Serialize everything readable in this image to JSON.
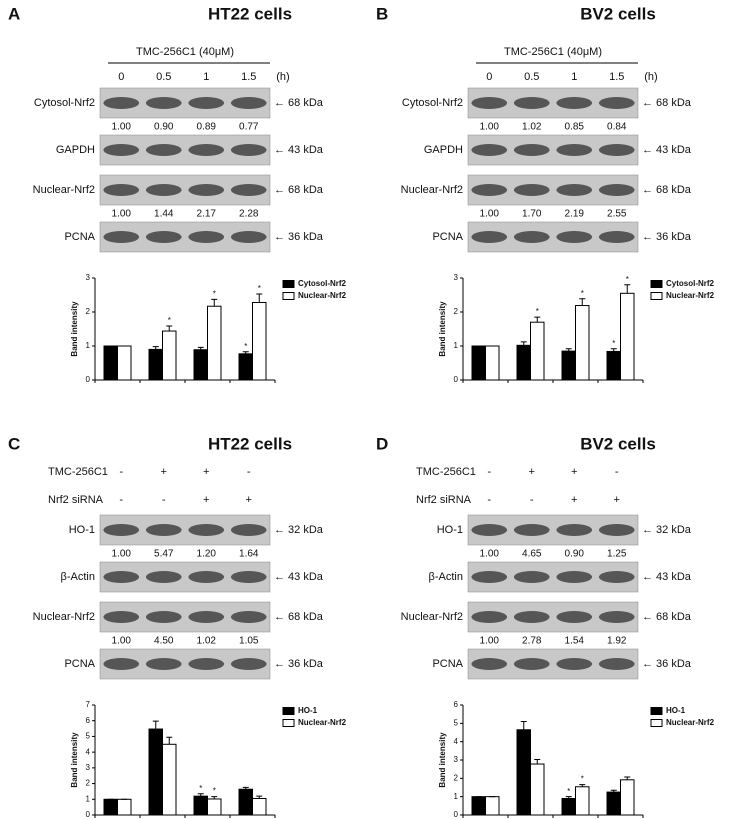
{
  "panels": [
    {
      "letter": "A",
      "title": "HT22 cells",
      "treatments": [
        {
          "label": "TMC-256C1 (40μM)",
          "lanes": [
            "0",
            "0.5",
            "1",
            "1.5"
          ],
          "unit": "(h)"
        }
      ],
      "blots": [
        {
          "label": "Cytosol-Nrf2",
          "marker": "← 68 kDa",
          "quant": [
            "1.00",
            "0.90",
            "0.89",
            "0.77"
          ]
        },
        {
          "label": "GAPDH",
          "marker": "← 43 kDa"
        },
        {
          "label": "Nuclear-Nrf2",
          "marker": "← 68 kDa",
          "quant": [
            "1.00",
            "1.44",
            "2.17",
            "2.28"
          ]
        },
        {
          "label": "PCNA",
          "marker": "← 36 kDa"
        }
      ]
    },
    {
      "letter": "B",
      "title": "BV2 cells",
      "treatments": [
        {
          "label": "TMC-256C1 (40μM)",
          "lanes": [
            "0",
            "0.5",
            "1",
            "1.5"
          ],
          "unit": "(h)"
        }
      ],
      "blots": [
        {
          "label": "Cytosol-Nrf2",
          "marker": "← 68 kDa",
          "quant": [
            "1.00",
            "1.02",
            "0.85",
            "0.84"
          ]
        },
        {
          "label": "GAPDH",
          "marker": "← 43 kDa"
        },
        {
          "label": "Nuclear-Nrf2",
          "marker": "← 68 kDa",
          "quant": [
            "1.00",
            "1.70",
            "2.19",
            "2.55"
          ]
        },
        {
          "label": "PCNA",
          "marker": "← 36 kDa"
        }
      ]
    },
    {
      "letter": "C",
      "title": "HT22 cells",
      "treatments": [
        {
          "label": "TMC-256C1",
          "lanes": [
            "-",
            "+",
            "+",
            "-"
          ]
        },
        {
          "label": "Nrf2 siRNA",
          "lanes": [
            "-",
            "-",
            "+",
            "+"
          ]
        }
      ],
      "blots": [
        {
          "label": "HO-1",
          "marker": "← 32 kDa",
          "quant": [
            "1.00",
            "5.47",
            "1.20",
            "1.64"
          ]
        },
        {
          "label": "β-Actin",
          "marker": "← 43 kDa"
        },
        {
          "label": "Nuclear-Nrf2",
          "marker": "← 68 kDa",
          "quant": [
            "1.00",
            "4.50",
            "1.02",
            "1.05"
          ]
        },
        {
          "label": "PCNA",
          "marker": "← 36 kDa"
        }
      ]
    },
    {
      "letter": "D",
      "title": "BV2 cells",
      "treatments": [
        {
          "label": "TMC-256C1",
          "lanes": [
            "-",
            "+",
            "+",
            "-"
          ]
        },
        {
          "label": "Nrf2 siRNA",
          "lanes": [
            "-",
            "-",
            "+",
            "+"
          ]
        }
      ],
      "blots": [
        {
          "label": "HO-1",
          "marker": "← 32 kDa",
          "quant": [
            "1.00",
            "4.65",
            "0.90",
            "1.25"
          ]
        },
        {
          "label": "β-Actin",
          "marker": "← 43 kDa"
        },
        {
          "label": "Nuclear-Nrf2",
          "marker": "← 68 kDa",
          "quant": [
            "1.00",
            "2.78",
            "1.54",
            "1.92"
          ]
        },
        {
          "label": "PCNA",
          "marker": "← 36 kDa"
        }
      ]
    }
  ],
  "chart_data": [
    {
      "type": "bar",
      "ylabel": "Band intensity",
      "categories": [
        null,
        null,
        null,
        null
      ],
      "legend": "upper right",
      "ylim": [
        0,
        3
      ],
      "yticks": [
        0,
        1,
        2,
        3
      ],
      "series": [
        {
          "name": "Cytosol-Nrf2",
          "color": "#000000",
          "values": [
            1,
            0.9,
            0.89,
            0.77
          ],
          "errors": [
            0,
            0.08,
            0.07,
            0.06
          ],
          "markers": [
            null,
            null,
            null,
            "*"
          ]
        },
        {
          "name": "Nuclear-Nrf2",
          "color": "#ffffff",
          "values": [
            1,
            1.44,
            2.17,
            2.28
          ],
          "errors": [
            0,
            0.15,
            0.2,
            0.25
          ],
          "markers": [
            null,
            "*",
            "*",
            "*"
          ]
        }
      ]
    },
    {
      "type": "bar",
      "ylabel": "Band intensity",
      "categories": [
        null,
        null,
        null,
        null
      ],
      "legend": "upper right",
      "ylim": [
        0,
        3
      ],
      "yticks": [
        0,
        1,
        2,
        3
      ],
      "series": [
        {
          "name": "Cytosol-Nrf2",
          "color": "#000000",
          "values": [
            1,
            1.02,
            0.85,
            0.84
          ],
          "errors": [
            0,
            0.1,
            0.07,
            0.08
          ],
          "markers": [
            null,
            null,
            null,
            "*"
          ]
        },
        {
          "name": "Nuclear-Nrf2",
          "color": "#ffffff",
          "values": [
            1,
            1.7,
            2.19,
            2.55
          ],
          "errors": [
            0,
            0.15,
            0.2,
            0.25
          ],
          "markers": [
            null,
            "*",
            "*",
            "*"
          ]
        }
      ]
    },
    {
      "type": "bar",
      "ylabel": "Band intensity",
      "categories": [
        null,
        null,
        null,
        null
      ],
      "legend": "upper right",
      "ylim": [
        0,
        7
      ],
      "yticks": [
        0,
        1,
        2,
        3,
        4,
        5,
        6,
        7
      ],
      "series": [
        {
          "name": "HO-1",
          "color": "#000000",
          "values": [
            1,
            5.47,
            1.2,
            1.64
          ],
          "errors": [
            0,
            0.5,
            0.15,
            0.12
          ],
          "markers": [
            null,
            null,
            "*",
            null
          ]
        },
        {
          "name": "Nuclear-Nrf2",
          "color": "#ffffff",
          "values": [
            1,
            4.5,
            1.02,
            1.05
          ],
          "errors": [
            0,
            0.45,
            0.15,
            0.15
          ],
          "markers": [
            null,
            null,
            "*",
            null
          ]
        }
      ]
    },
    {
      "type": "bar",
      "ylabel": "Band intensity",
      "categories": [
        null,
        null,
        null,
        null
      ],
      "legend": "upper right",
      "ylim": [
        0,
        6
      ],
      "yticks": [
        0,
        1,
        2,
        3,
        4,
        5,
        6
      ],
      "series": [
        {
          "name": "HO-1",
          "color": "#000000",
          "values": [
            1,
            4.65,
            0.9,
            1.25
          ],
          "errors": [
            0,
            0.45,
            0.1,
            0.1
          ],
          "markers": [
            null,
            null,
            "*",
            null
          ]
        },
        {
          "name": "Nuclear-Nrf2",
          "color": "#ffffff",
          "values": [
            1,
            2.78,
            1.54,
            1.92
          ],
          "errors": [
            0,
            0.25,
            0.12,
            0.15
          ],
          "markers": [
            null,
            null,
            "*",
            null
          ]
        }
      ]
    }
  ]
}
